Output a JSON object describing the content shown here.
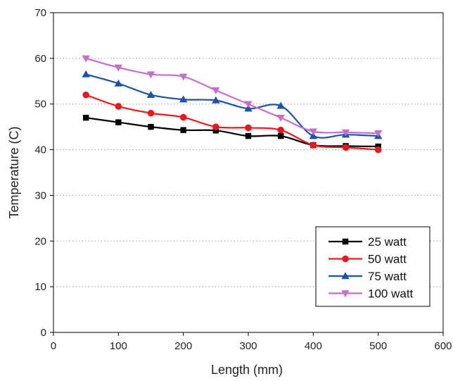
{
  "chart_data": {
    "type": "line",
    "xlabel": "Length (mm)",
    "ylabel": "Temperature (C)",
    "xlim": [
      0,
      600
    ],
    "ylim": [
      0,
      70
    ],
    "xticks": [
      "0",
      "100",
      "200",
      "300",
      "400",
      "500",
      "600"
    ],
    "yticks": [
      "0",
      "10",
      "20",
      "30",
      "40",
      "50",
      "60",
      "70"
    ],
    "grid": "dotted horizontal",
    "legend_position": "bottom-right",
    "x": [
      50,
      100,
      150,
      200,
      250,
      300,
      350,
      400,
      450,
      500
    ],
    "series": [
      {
        "name": "25 watt",
        "color": "#000000",
        "marker": "square",
        "values": [
          47,
          46,
          45,
          44.3,
          44.2,
          43,
          43,
          41,
          40.8,
          40.7
        ]
      },
      {
        "name": "50 watt",
        "color": "#e8191e",
        "marker": "circle",
        "values": [
          52,
          49.5,
          48,
          47.1,
          45,
          44.8,
          44.3,
          41,
          40.5,
          40
        ]
      },
      {
        "name": "75 watt",
        "color": "#1c52a8",
        "marker": "triangle-up",
        "values": [
          56.5,
          54.5,
          52,
          51,
          50.8,
          49,
          49.6,
          43,
          43.3,
          43
        ]
      },
      {
        "name": "100 watt",
        "color": "#c56fc9",
        "marker": "triangle-down",
        "values": [
          60,
          58,
          56.5,
          56,
          53,
          50,
          47,
          44,
          43.8,
          43.6
        ]
      }
    ]
  }
}
